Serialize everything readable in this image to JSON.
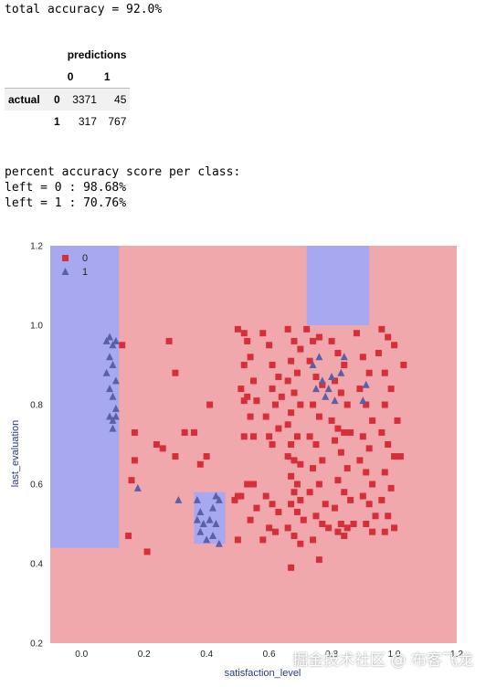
{
  "report": {
    "total_accuracy": "total accuracy = 92.0%",
    "class_header": "percent accuracy score per class:",
    "class_0": "left = 0 : 98.68%",
    "class_1": "left = 1 : 70.76%"
  },
  "confusion_matrix": {
    "predictions_label": "predictions",
    "actual_label": "actual",
    "pred_labels": [
      "0",
      "1"
    ],
    "rows": [
      {
        "label": "0",
        "values": [
          "3371",
          "45"
        ]
      },
      {
        "label": "1",
        "values": [
          "317",
          "767"
        ]
      }
    ]
  },
  "watermark": "掘金技术社区 @ 布客飞龙",
  "chart_data": {
    "type": "scatter",
    "title": "",
    "xlabel": "satisfaction_level",
    "ylabel": "last_evaluation",
    "xlim": [
      -0.1,
      1.2
    ],
    "ylim": [
      0.2,
      1.2
    ],
    "xticks": [
      "0.0",
      "0.2",
      "0.4",
      "0.6",
      "0.8",
      "1.0",
      "1.2"
    ],
    "yticks": [
      "0.2",
      "0.4",
      "0.6",
      "0.8",
      "1.0",
      "1.2"
    ],
    "grid": false,
    "legend": {
      "placement": "top-left",
      "entries": [
        "0",
        "1"
      ]
    },
    "colors": {
      "class0": "#d62f39",
      "class1": "#5b5fa8",
      "region0": "#f0a8ac",
      "region1": "#a8a8f0"
    },
    "decision_regions": [
      {
        "class": "1",
        "x": [
          -0.1,
          0.12
        ],
        "y": [
          0.44,
          1.2
        ]
      },
      {
        "class": "1",
        "x": [
          0.72,
          0.92
        ],
        "y": [
          1.0,
          1.2
        ]
      },
      {
        "class": "1",
        "x": [
          0.36,
          0.46
        ],
        "y": [
          0.45,
          0.58
        ]
      }
    ],
    "series": [
      {
        "name": "0",
        "marker": "square",
        "points": [
          [
            0.13,
            0.95
          ],
          [
            0.17,
            0.73
          ],
          [
            0.17,
            0.66
          ],
          [
            0.16,
            0.61
          ],
          [
            0.15,
            0.47
          ],
          [
            0.21,
            0.43
          ],
          [
            0.24,
            0.7
          ],
          [
            0.26,
            0.69
          ],
          [
            0.28,
            0.96
          ],
          [
            0.3,
            0.67
          ],
          [
            0.3,
            0.88
          ],
          [
            0.33,
            0.73
          ],
          [
            0.36,
            0.73
          ],
          [
            0.4,
            0.67
          ],
          [
            0.41,
            0.8
          ],
          [
            0.38,
            0.65
          ],
          [
            0.5,
            0.99
          ],
          [
            0.52,
            0.98
          ],
          [
            0.53,
            0.96
          ],
          [
            0.54,
            0.92
          ],
          [
            0.52,
            0.9
          ],
          [
            0.55,
            0.86
          ],
          [
            0.51,
            0.84
          ],
          [
            0.53,
            0.82
          ],
          [
            0.52,
            0.81
          ],
          [
            0.56,
            0.81
          ],
          [
            0.54,
            0.77
          ],
          [
            0.52,
            0.72
          ],
          [
            0.55,
            0.72
          ],
          [
            0.53,
            0.6
          ],
          [
            0.55,
            0.6
          ],
          [
            0.51,
            0.57
          ],
          [
            0.5,
            0.57
          ],
          [
            0.49,
            0.56
          ],
          [
            0.56,
            0.54
          ],
          [
            0.54,
            0.51
          ],
          [
            0.5,
            0.46
          ],
          [
            0.58,
            0.98
          ],
          [
            0.6,
            0.95
          ],
          [
            0.61,
            0.9
          ],
          [
            0.63,
            0.87
          ],
          [
            0.61,
            0.84
          ],
          [
            0.64,
            0.82
          ],
          [
            0.62,
            0.8
          ],
          [
            0.59,
            0.77
          ],
          [
            0.63,
            0.74
          ],
          [
            0.6,
            0.72
          ],
          [
            0.61,
            0.7
          ],
          [
            0.59,
            0.57
          ],
          [
            0.61,
            0.55
          ],
          [
            0.63,
            0.53
          ],
          [
            0.6,
            0.49
          ],
          [
            0.62,
            0.48
          ],
          [
            0.58,
            0.46
          ],
          [
            0.66,
            0.99
          ],
          [
            0.68,
            0.96
          ],
          [
            0.7,
            0.94
          ],
          [
            0.67,
            0.91
          ],
          [
            0.69,
            0.88
          ],
          [
            0.66,
            0.86
          ],
          [
            0.68,
            0.83
          ],
          [
            0.7,
            0.8
          ],
          [
            0.67,
            0.78
          ],
          [
            0.66,
            0.75
          ],
          [
            0.69,
            0.72
          ],
          [
            0.67,
            0.7
          ],
          [
            0.66,
            0.67
          ],
          [
            0.68,
            0.66
          ],
          [
            0.7,
            0.65
          ],
          [
            0.67,
            0.62
          ],
          [
            0.69,
            0.6
          ],
          [
            0.68,
            0.58
          ],
          [
            0.7,
            0.56
          ],
          [
            0.67,
            0.55
          ],
          [
            0.69,
            0.53
          ],
          [
            0.71,
            0.51
          ],
          [
            0.66,
            0.49
          ],
          [
            0.68,
            0.47
          ],
          [
            0.7,
            0.45
          ],
          [
            0.67,
            0.39
          ],
          [
            0.72,
            0.99
          ],
          [
            0.74,
            0.96
          ],
          [
            0.76,
            0.97
          ],
          [
            0.73,
            0.91
          ],
          [
            0.75,
            0.87
          ],
          [
            0.77,
            0.85
          ],
          [
            0.74,
            0.8
          ],
          [
            0.76,
            0.77
          ],
          [
            0.73,
            0.72
          ],
          [
            0.75,
            0.7
          ],
          [
            0.77,
            0.66
          ],
          [
            0.74,
            0.64
          ],
          [
            0.76,
            0.6
          ],
          [
            0.73,
            0.58
          ],
          [
            0.78,
            0.55
          ],
          [
            0.75,
            0.52
          ],
          [
            0.77,
            0.5
          ],
          [
            0.79,
            0.49
          ],
          [
            0.74,
            0.46
          ],
          [
            0.76,
            0.41
          ],
          [
            0.8,
            0.96
          ],
          [
            0.82,
            0.93
          ],
          [
            0.84,
            0.9
          ],
          [
            0.81,
            0.86
          ],
          [
            0.83,
            0.83
          ],
          [
            0.85,
            0.8
          ],
          [
            0.8,
            0.76
          ],
          [
            0.82,
            0.74
          ],
          [
            0.84,
            0.73
          ],
          [
            0.86,
            0.73
          ],
          [
            0.81,
            0.71
          ],
          [
            0.83,
            0.68
          ],
          [
            0.85,
            0.64
          ],
          [
            0.82,
            0.61
          ],
          [
            0.84,
            0.58
          ],
          [
            0.86,
            0.56
          ],
          [
            0.81,
            0.54
          ],
          [
            0.83,
            0.5
          ],
          [
            0.85,
            0.49
          ],
          [
            0.87,
            0.5
          ],
          [
            0.82,
            0.48
          ],
          [
            0.84,
            0.47
          ],
          [
            0.88,
            0.98
          ],
          [
            0.9,
            0.92
          ],
          [
            0.92,
            0.88
          ],
          [
            0.89,
            0.84
          ],
          [
            0.91,
            0.8
          ],
          [
            0.93,
            0.76
          ],
          [
            0.9,
            0.72
          ],
          [
            0.92,
            0.69
          ],
          [
            0.89,
            0.66
          ],
          [
            0.91,
            0.63
          ],
          [
            0.93,
            0.6
          ],
          [
            0.9,
            0.57
          ],
          [
            0.92,
            0.55
          ],
          [
            0.94,
            0.52
          ],
          [
            0.91,
            0.5
          ],
          [
            0.93,
            0.48
          ],
          [
            0.96,
            0.99
          ],
          [
            0.98,
            0.97
          ],
          [
            0.95,
            0.93
          ],
          [
            0.97,
            0.88
          ],
          [
            1.0,
            0.95
          ],
          [
            0.99,
            0.84
          ],
          [
            0.97,
            0.8
          ],
          [
            1.01,
            0.76
          ],
          [
            0.96,
            0.73
          ],
          [
            0.98,
            0.7
          ],
          [
            1.0,
            0.67
          ],
          [
            1.02,
            0.67
          ],
          [
            0.97,
            0.63
          ],
          [
            0.99,
            0.59
          ],
          [
            0.96,
            0.56
          ],
          [
            0.98,
            0.52
          ],
          [
            1.0,
            0.49
          ],
          [
            0.97,
            0.48
          ],
          [
            1.03,
            0.9
          ]
        ]
      },
      {
        "name": "1",
        "marker": "triangle",
        "points": [
          [
            0.08,
            0.96
          ],
          [
            0.09,
            0.97
          ],
          [
            0.1,
            0.95
          ],
          [
            0.11,
            0.96
          ],
          [
            0.09,
            0.92
          ],
          [
            0.1,
            0.9
          ],
          [
            0.08,
            0.88
          ],
          [
            0.11,
            0.86
          ],
          [
            0.09,
            0.84
          ],
          [
            0.1,
            0.82
          ],
          [
            0.11,
            0.79
          ],
          [
            0.09,
            0.77
          ],
          [
            0.1,
            0.76
          ],
          [
            0.11,
            0.77
          ],
          [
            0.1,
            0.74
          ],
          [
            0.18,
            0.59
          ],
          [
            0.31,
            0.56
          ],
          [
            0.37,
            0.56
          ],
          [
            0.38,
            0.53
          ],
          [
            0.37,
            0.51
          ],
          [
            0.39,
            0.5
          ],
          [
            0.38,
            0.48
          ],
          [
            0.4,
            0.46
          ],
          [
            0.41,
            0.51
          ],
          [
            0.42,
            0.54
          ],
          [
            0.43,
            0.57
          ],
          [
            0.44,
            0.56
          ],
          [
            0.43,
            0.5
          ],
          [
            0.44,
            0.45
          ],
          [
            0.42,
            0.47
          ],
          [
            0.74,
            0.9
          ],
          [
            0.76,
            0.92
          ],
          [
            0.75,
            0.84
          ],
          [
            0.77,
            0.86
          ],
          [
            0.78,
            0.82
          ],
          [
            0.79,
            0.84
          ],
          [
            0.8,
            0.87
          ],
          [
            0.83,
            0.88
          ],
          [
            0.84,
            0.92
          ],
          [
            0.81,
            0.81
          ],
          [
            0.91,
            0.85
          ],
          [
            0.9,
            0.81
          ]
        ]
      }
    ]
  }
}
